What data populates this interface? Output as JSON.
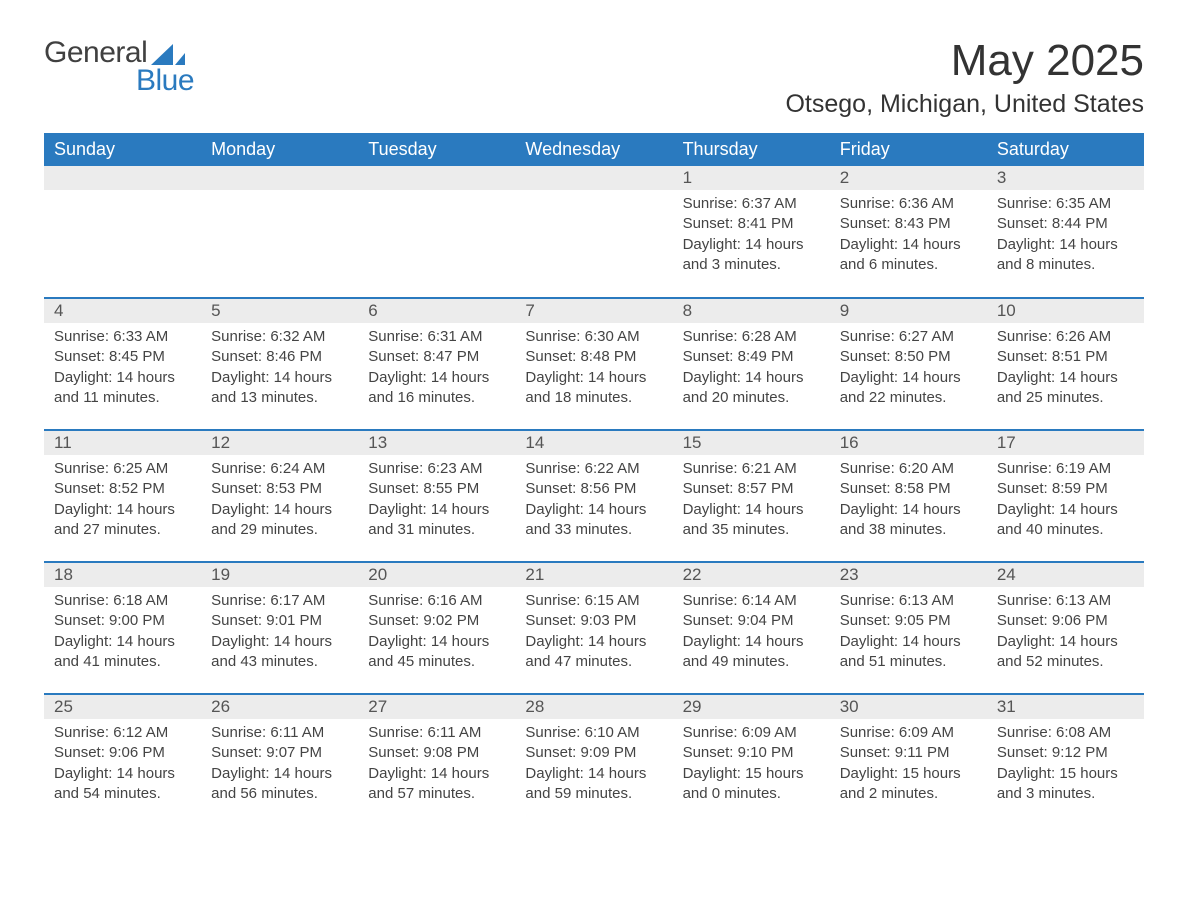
{
  "logo": {
    "text_general": "General",
    "text_blue": "Blue",
    "sail_color": "#2a7abf",
    "general_color": "#404040",
    "blue_color": "#2a7abf"
  },
  "header": {
    "month_title": "May 2025",
    "location": "Otsego, Michigan, United States"
  },
  "style": {
    "header_bg": "#2a7abf",
    "header_text_color": "#ffffff",
    "daynum_bg": "#ececec",
    "daynum_color": "#555555",
    "body_text_color": "#444444",
    "row_border_color": "#2a7abf",
    "page_bg": "#ffffff",
    "month_title_fontsize": 44,
    "location_fontsize": 25,
    "weekday_fontsize": 18,
    "daynum_fontsize": 17,
    "content_fontsize": 15
  },
  "calendar": {
    "type": "table",
    "weekdays": [
      "Sunday",
      "Monday",
      "Tuesday",
      "Wednesday",
      "Thursday",
      "Friday",
      "Saturday"
    ],
    "blank_leading": 4,
    "days": [
      {
        "n": 1,
        "sunrise": "6:37 AM",
        "sunset": "8:41 PM",
        "dl_h": 14,
        "dl_m": 3
      },
      {
        "n": 2,
        "sunrise": "6:36 AM",
        "sunset": "8:43 PM",
        "dl_h": 14,
        "dl_m": 6
      },
      {
        "n": 3,
        "sunrise": "6:35 AM",
        "sunset": "8:44 PM",
        "dl_h": 14,
        "dl_m": 8
      },
      {
        "n": 4,
        "sunrise": "6:33 AM",
        "sunset": "8:45 PM",
        "dl_h": 14,
        "dl_m": 11
      },
      {
        "n": 5,
        "sunrise": "6:32 AM",
        "sunset": "8:46 PM",
        "dl_h": 14,
        "dl_m": 13
      },
      {
        "n": 6,
        "sunrise": "6:31 AM",
        "sunset": "8:47 PM",
        "dl_h": 14,
        "dl_m": 16
      },
      {
        "n": 7,
        "sunrise": "6:30 AM",
        "sunset": "8:48 PM",
        "dl_h": 14,
        "dl_m": 18
      },
      {
        "n": 8,
        "sunrise": "6:28 AM",
        "sunset": "8:49 PM",
        "dl_h": 14,
        "dl_m": 20
      },
      {
        "n": 9,
        "sunrise": "6:27 AM",
        "sunset": "8:50 PM",
        "dl_h": 14,
        "dl_m": 22
      },
      {
        "n": 10,
        "sunrise": "6:26 AM",
        "sunset": "8:51 PM",
        "dl_h": 14,
        "dl_m": 25
      },
      {
        "n": 11,
        "sunrise": "6:25 AM",
        "sunset": "8:52 PM",
        "dl_h": 14,
        "dl_m": 27
      },
      {
        "n": 12,
        "sunrise": "6:24 AM",
        "sunset": "8:53 PM",
        "dl_h": 14,
        "dl_m": 29
      },
      {
        "n": 13,
        "sunrise": "6:23 AM",
        "sunset": "8:55 PM",
        "dl_h": 14,
        "dl_m": 31
      },
      {
        "n": 14,
        "sunrise": "6:22 AM",
        "sunset": "8:56 PM",
        "dl_h": 14,
        "dl_m": 33
      },
      {
        "n": 15,
        "sunrise": "6:21 AM",
        "sunset": "8:57 PM",
        "dl_h": 14,
        "dl_m": 35
      },
      {
        "n": 16,
        "sunrise": "6:20 AM",
        "sunset": "8:58 PM",
        "dl_h": 14,
        "dl_m": 38
      },
      {
        "n": 17,
        "sunrise": "6:19 AM",
        "sunset": "8:59 PM",
        "dl_h": 14,
        "dl_m": 40
      },
      {
        "n": 18,
        "sunrise": "6:18 AM",
        "sunset": "9:00 PM",
        "dl_h": 14,
        "dl_m": 41
      },
      {
        "n": 19,
        "sunrise": "6:17 AM",
        "sunset": "9:01 PM",
        "dl_h": 14,
        "dl_m": 43
      },
      {
        "n": 20,
        "sunrise": "6:16 AM",
        "sunset": "9:02 PM",
        "dl_h": 14,
        "dl_m": 45
      },
      {
        "n": 21,
        "sunrise": "6:15 AM",
        "sunset": "9:03 PM",
        "dl_h": 14,
        "dl_m": 47
      },
      {
        "n": 22,
        "sunrise": "6:14 AM",
        "sunset": "9:04 PM",
        "dl_h": 14,
        "dl_m": 49
      },
      {
        "n": 23,
        "sunrise": "6:13 AM",
        "sunset": "9:05 PM",
        "dl_h": 14,
        "dl_m": 51
      },
      {
        "n": 24,
        "sunrise": "6:13 AM",
        "sunset": "9:06 PM",
        "dl_h": 14,
        "dl_m": 52
      },
      {
        "n": 25,
        "sunrise": "6:12 AM",
        "sunset": "9:06 PM",
        "dl_h": 14,
        "dl_m": 54
      },
      {
        "n": 26,
        "sunrise": "6:11 AM",
        "sunset": "9:07 PM",
        "dl_h": 14,
        "dl_m": 56
      },
      {
        "n": 27,
        "sunrise": "6:11 AM",
        "sunset": "9:08 PM",
        "dl_h": 14,
        "dl_m": 57
      },
      {
        "n": 28,
        "sunrise": "6:10 AM",
        "sunset": "9:09 PM",
        "dl_h": 14,
        "dl_m": 59
      },
      {
        "n": 29,
        "sunrise": "6:09 AM",
        "sunset": "9:10 PM",
        "dl_h": 15,
        "dl_m": 0
      },
      {
        "n": 30,
        "sunrise": "6:09 AM",
        "sunset": "9:11 PM",
        "dl_h": 15,
        "dl_m": 2
      },
      {
        "n": 31,
        "sunrise": "6:08 AM",
        "sunset": "9:12 PM",
        "dl_h": 15,
        "dl_m": 3
      }
    ],
    "labels": {
      "sunrise_prefix": "Sunrise: ",
      "sunset_prefix": "Sunset: ",
      "daylight_prefix": "Daylight: ",
      "hours_word": " hours",
      "and_word": "and ",
      "minutes_word": " minutes."
    }
  }
}
